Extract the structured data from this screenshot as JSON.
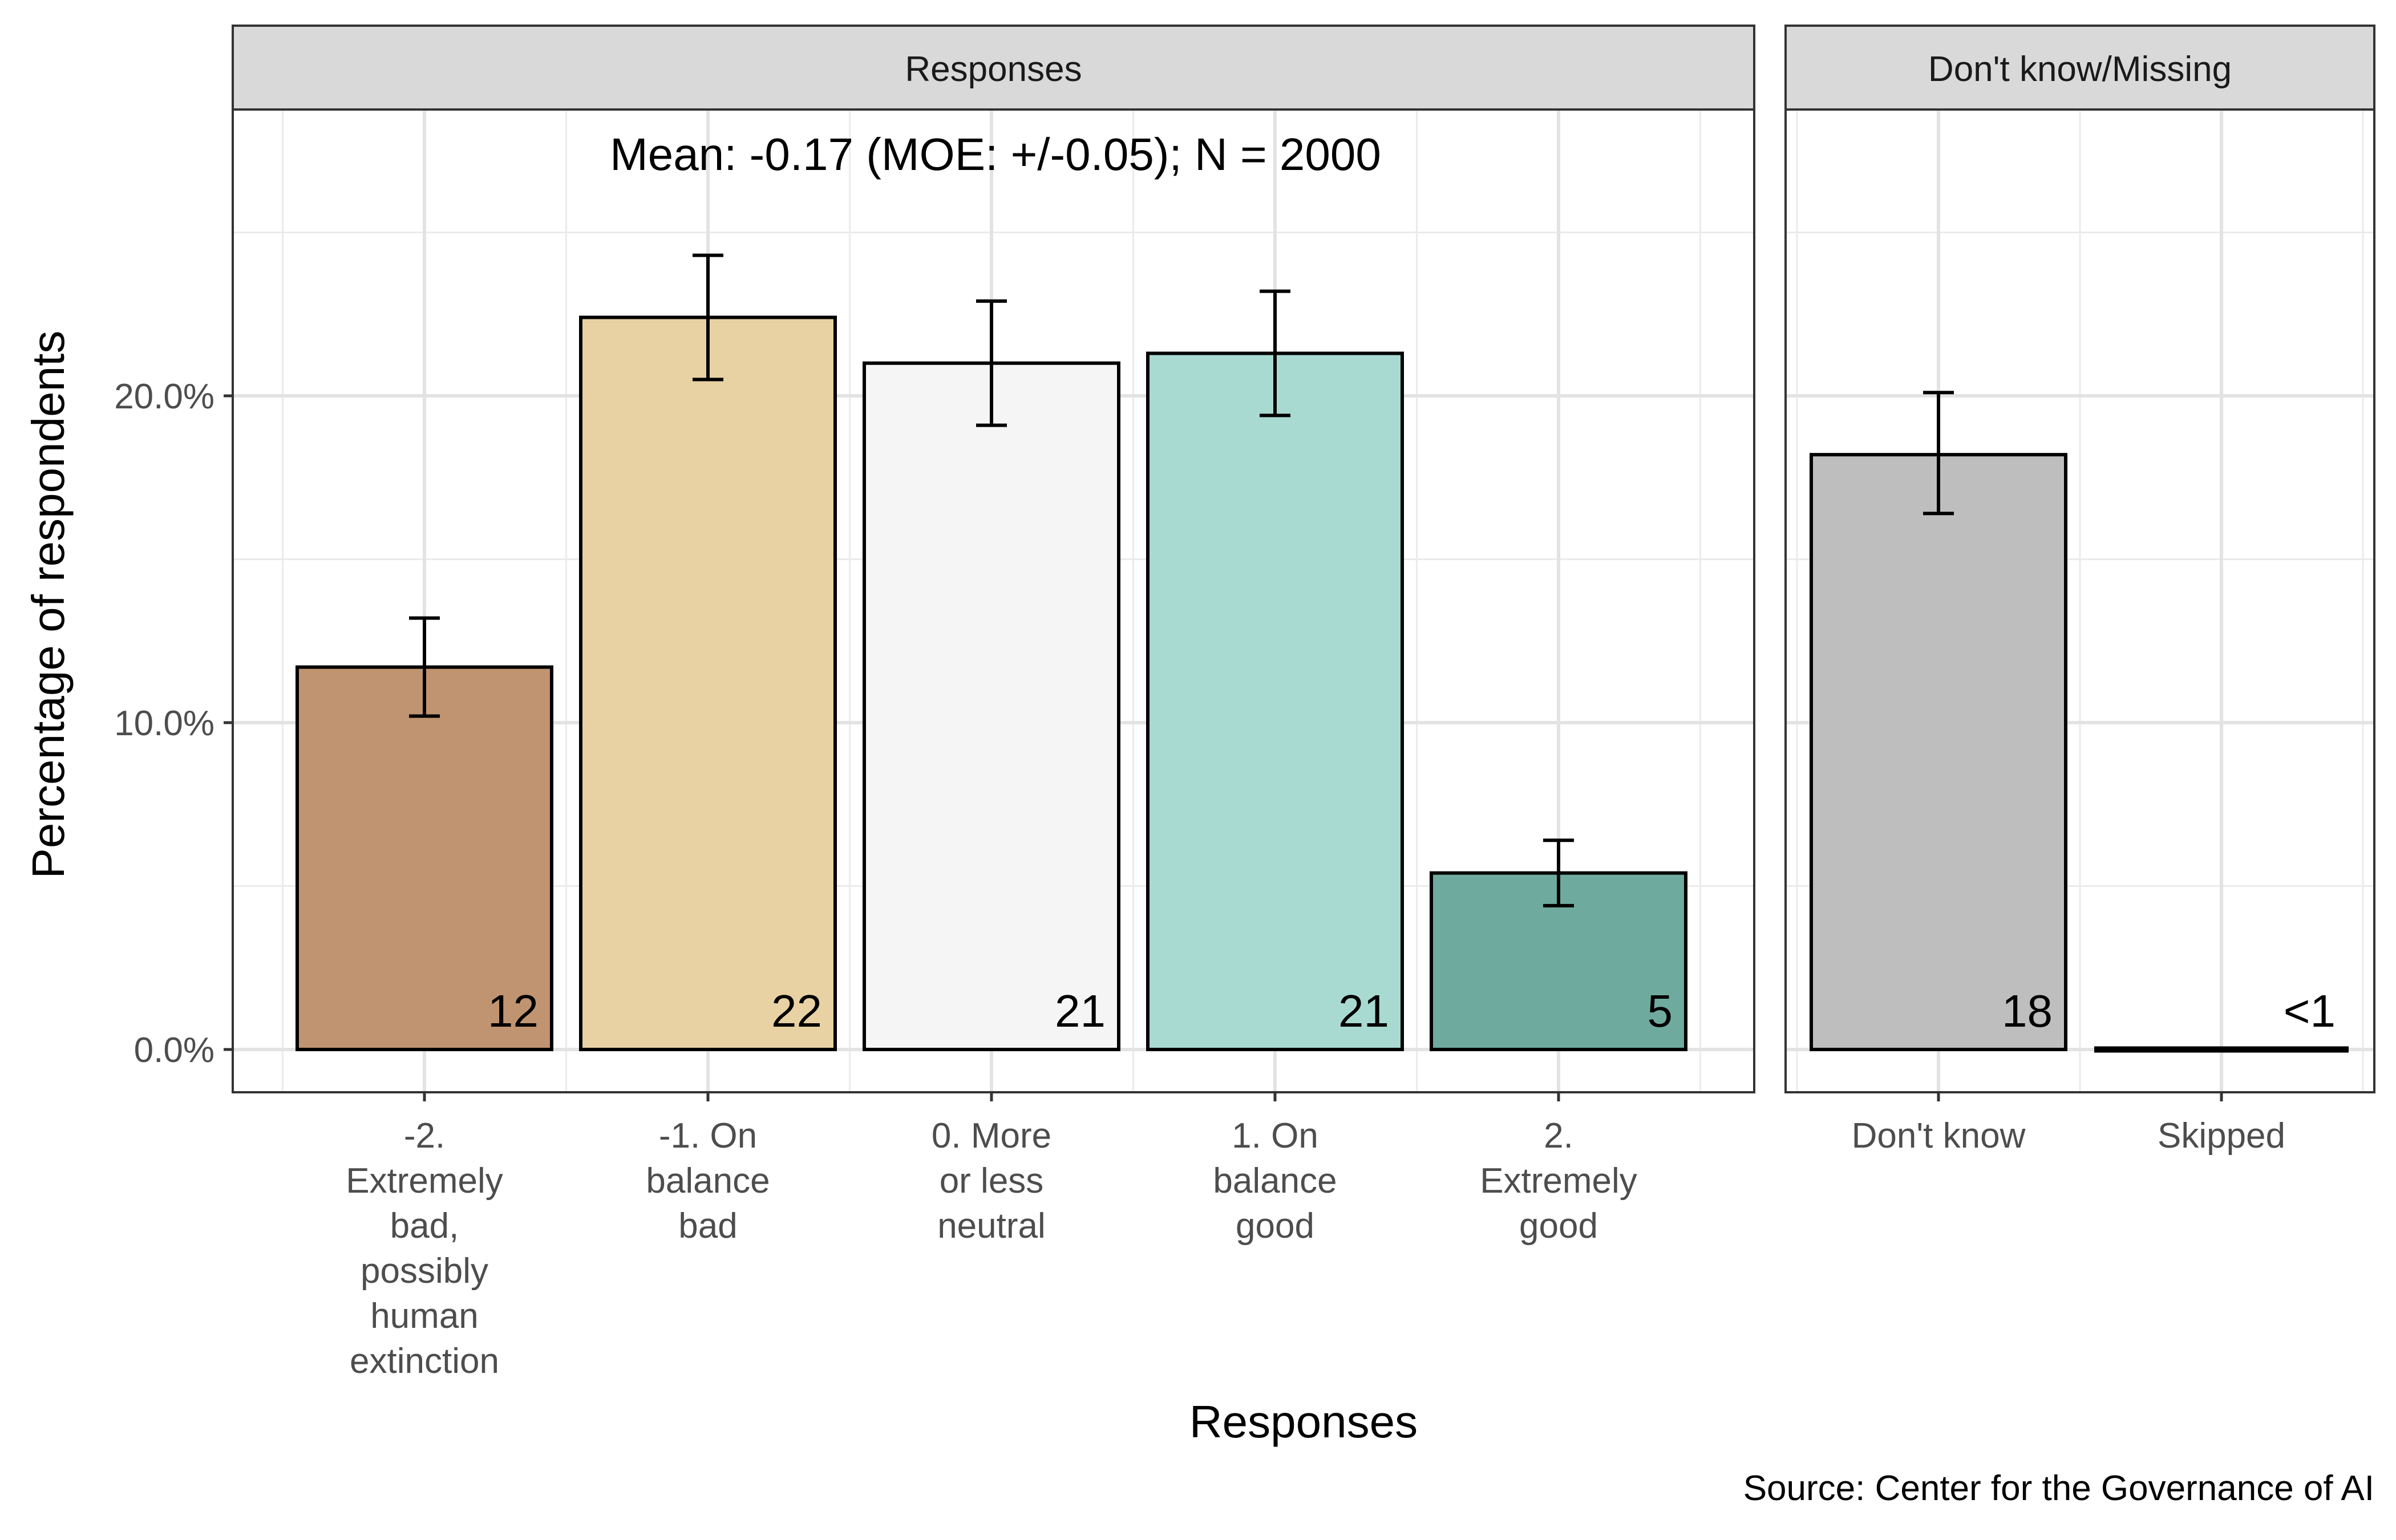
{
  "chart_data": {
    "type": "bar",
    "ylabel": "Percentage of respondents",
    "xlabel": "Responses",
    "caption": "Source: Center for the Governance of AI",
    "y_ticks": [
      "0.0%",
      "10.0%",
      "20.0%"
    ],
    "ylim": [
      0,
      29
    ],
    "grid": true,
    "legend": "none",
    "panels": [
      {
        "strip": "Responses",
        "annotation": "Mean: -0.17 (MOE: +/-0.05); N = 2000",
        "categories": [
          [
            "-2.",
            "Extremely",
            "bad,",
            "possibly",
            "human",
            "extinction"
          ],
          [
            "-1. On",
            "balance",
            "bad"
          ],
          [
            "0. More",
            "or less",
            "neutral"
          ],
          [
            "1. On",
            "balance",
            "good"
          ],
          [
            "2.",
            "Extremely",
            "good"
          ]
        ],
        "values": [
          11.7,
          22.4,
          21.0,
          21.3,
          5.4
        ],
        "error_low": [
          10.2,
          20.5,
          19.1,
          19.4,
          4.4
        ],
        "error_high": [
          13.2,
          24.3,
          22.9,
          23.2,
          6.4
        ],
        "labels": [
          "12",
          "22",
          "21",
          "21",
          "5"
        ],
        "colors": [
          "#c09470",
          "#e8d2a3",
          "#f5f5f5",
          "#a8dad1",
          "#6faa9f"
        ]
      },
      {
        "strip": "Don't know/Missing",
        "annotation": "",
        "categories": [
          [
            "Don't know"
          ],
          [
            "Skipped"
          ]
        ],
        "values": [
          18.2,
          0.05
        ],
        "error_low": [
          16.4,
          null
        ],
        "error_high": [
          20.1,
          null
        ],
        "labels": [
          "18",
          "<1"
        ],
        "colors": [
          "#bebebe",
          "#bebebe"
        ]
      }
    ]
  }
}
